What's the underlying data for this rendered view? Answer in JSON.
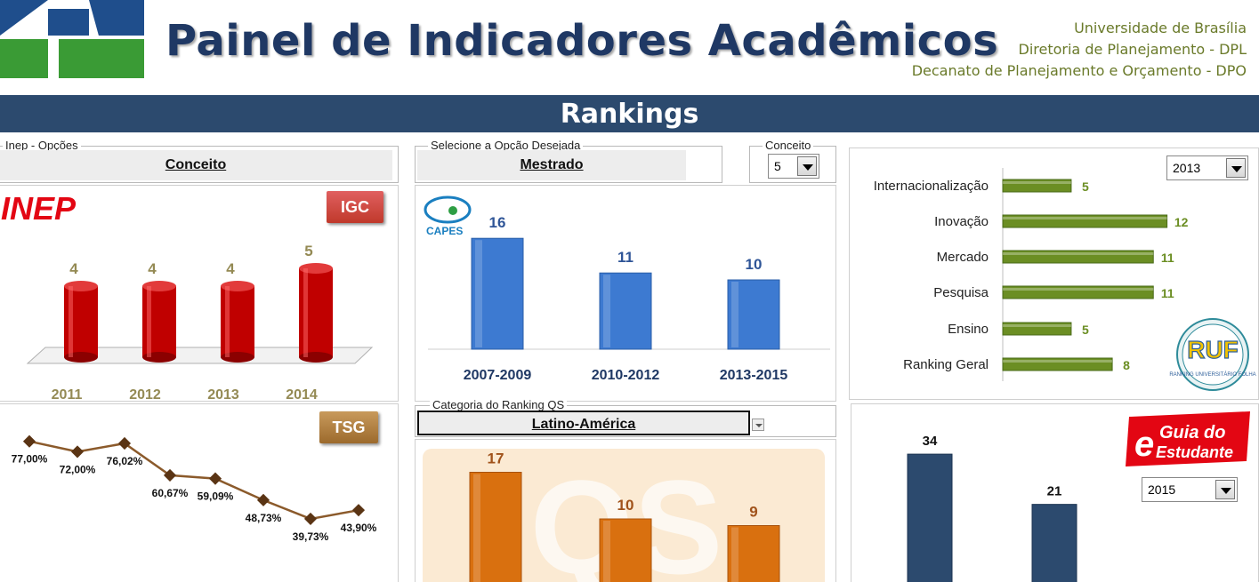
{
  "header": {
    "title": "Painel de Indicadores Acadêmicos",
    "org_lines": [
      "Universidade de Brasília",
      "Diretoria de Planejamento - DPL",
      "Decanato de Planejamento e Orçamento - DPO"
    ]
  },
  "banner": {
    "title": "Rankings"
  },
  "inep": {
    "legend": "Inep - Opções",
    "selected": "Conceito",
    "logo_text": "INEP",
    "badge": "IGC",
    "chart_data": {
      "type": "bar",
      "categories": [
        "2011",
        "2012",
        "2013",
        "2014"
      ],
      "values": [
        4,
        4,
        4,
        5
      ],
      "ylim": [
        0,
        6
      ],
      "color": "#c00000",
      "label_color": "#948a54"
    }
  },
  "capes": {
    "legend": "Selecione a Opção Desejada",
    "selected": "Mestrado",
    "conceito_legend": "Conceito",
    "conceito_value": "5",
    "logo_text": "CAPES",
    "chart_data": {
      "type": "bar",
      "categories": [
        "2007-2009",
        "2010-2012",
        "2013-2015"
      ],
      "values": [
        16,
        11,
        10
      ],
      "ylim": [
        0,
        20
      ],
      "color": "#3d7ad1",
      "label_color": "#1f3864"
    }
  },
  "ruf": {
    "year": "2013",
    "logo_text": "RUF",
    "logo_subtext": "RANKING UNIVERSITÁRIO FOLHA",
    "chart_data": {
      "type": "bar",
      "orientation": "horizontal",
      "categories": [
        "Internacionalização",
        "Inovação",
        "Mercado",
        "Pesquisa",
        "Ensino",
        "Ranking Geral"
      ],
      "values": [
        5,
        12,
        11,
        11,
        5,
        8
      ],
      "xlim": [
        0,
        13
      ],
      "color": "#6b8e23",
      "label_color": "#6b8e23"
    }
  },
  "tsg": {
    "badge": "TSG",
    "chart_data": {
      "type": "line",
      "values": [
        77.0,
        72.0,
        76.02,
        60.67,
        59.09,
        48.73,
        39.73,
        43.9
      ],
      "labels": [
        "77,00%",
        "72,00%",
        "76,02%",
        "60,67%",
        "59,09%",
        "48,73%",
        "39,73%",
        "43,90%"
      ],
      "ylim": [
        35,
        82
      ],
      "color": "#8b5a2b",
      "marker_color": "#5a3414"
    }
  },
  "qs": {
    "legend": "Categoria do Ranking QS",
    "selected": "Latino-América",
    "watermark": "QS",
    "chart_data": {
      "type": "bar",
      "values": [
        17,
        10,
        9
      ],
      "ylim": [
        0,
        20
      ],
      "color": "#d9700f",
      "label_color": "#a0521a"
    }
  },
  "guia": {
    "year": "2015",
    "logo_letter": "e",
    "logo_text_1": "Guia do",
    "logo_text_2": "Estudante",
    "chart_data": {
      "type": "bar",
      "values": [
        34,
        21
      ],
      "ylim": [
        0,
        40
      ],
      "color": "#2c4a6e",
      "label_color": "#111111"
    }
  }
}
